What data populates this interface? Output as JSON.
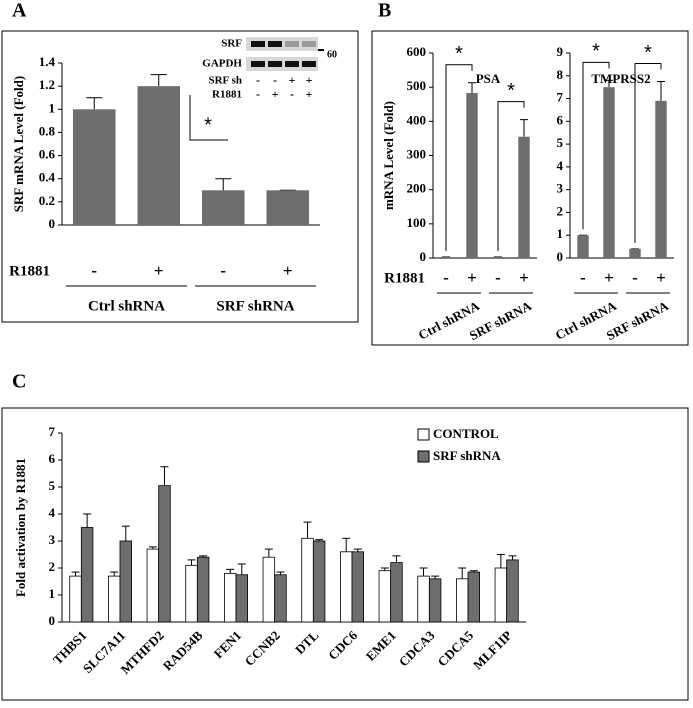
{
  "chart_data": [
    {
      "type": "bar",
      "panel_label": "A",
      "y_label": "SRF mRNA Level (Fold)",
      "categories": [
        "-",
        "+",
        "-",
        "+"
      ],
      "groups": [
        "Ctrl shRNA",
        "SRF shRNA"
      ],
      "treatment_label": "R1881",
      "values": [
        1.0,
        1.2,
        0.3,
        0.3
      ],
      "errors": [
        0.1,
        0.1,
        0.1,
        0
      ],
      "color": "#6e6e6e",
      "ylim": [
        0,
        1.4
      ],
      "yticks": [
        0,
        0.2,
        0.4,
        0.6,
        0.8,
        1,
        1.2,
        1.4
      ],
      "annotations": [
        "*"
      ],
      "inset": {
        "rows": [
          "SRF",
          "GAPDH"
        ],
        "marker": "60",
        "conditions": [
          {
            "label": "SRF sh",
            "signs": [
              "-",
              "-",
              "+",
              "+"
            ]
          },
          {
            "label": "R1881",
            "signs": [
              "-",
              "+",
              "-",
              "+"
            ]
          }
        ]
      }
    },
    {
      "type": "bar",
      "panel_label": "B",
      "title": "PSA",
      "y_label": "mRNA Level (Fold)",
      "categories": [
        "-",
        "+",
        "-",
        "+"
      ],
      "groups": [
        "Ctrl shRNA",
        "SRF shRNA"
      ],
      "treatment_label": "R1881",
      "values": [
        3,
        483,
        3,
        355
      ],
      "errors": [
        0,
        30,
        0,
        50
      ],
      "color": "#6e6e6e",
      "ylim": [
        0,
        600
      ],
      "yticks": [
        0,
        100,
        200,
        300,
        400,
        500,
        600
      ],
      "annotations": [
        "*",
        "*"
      ]
    },
    {
      "type": "bar",
      "title": "TMPRSS2",
      "categories": [
        "-",
        "+",
        "-",
        "+"
      ],
      "groups": [
        "Ctrl shRNA",
        "SRF shRNA"
      ],
      "values": [
        1,
        7.5,
        0.4,
        6.9
      ],
      "errors": [
        0,
        0.3,
        0,
        0.85
      ],
      "color": "#6e6e6e",
      "ylim": [
        0,
        9
      ],
      "yticks": [
        0,
        1,
        2,
        3,
        4,
        5,
        6,
        7,
        8,
        9
      ],
      "annotations": [
        "*",
        "*"
      ]
    },
    {
      "type": "bar",
      "panel_label": "C",
      "y_label": "Fold  activation by R1881",
      "categories": [
        "THBS1",
        "SLC7A11",
        "MTHFD2",
        "RAD54B",
        "FEN1",
        "CCNB2",
        "DTL",
        "CDC6",
        "EME1",
        "CDCA3",
        "CDCA5",
        "MLF1IP"
      ],
      "series": [
        {
          "name": "CONTROL",
          "color": "#ffffff",
          "values": [
            1.7,
            1.7,
            2.7,
            2.1,
            1.8,
            2.4,
            3.1,
            2.6,
            1.9,
            1.7,
            1.6,
            2.0
          ],
          "errors": [
            0.15,
            0.15,
            0.08,
            0.2,
            0.15,
            0.3,
            0.6,
            0.5,
            0.1,
            0.3,
            0.4,
            0.5
          ]
        },
        {
          "name": "SRF shRNA",
          "color": "#6e6e6e",
          "values": [
            3.5,
            3.0,
            5.05,
            2.4,
            1.75,
            1.75,
            3.0,
            2.6,
            2.2,
            1.6,
            1.85,
            2.3
          ],
          "errors": [
            0.5,
            0.55,
            0.7,
            0.05,
            0.4,
            0.1,
            0.05,
            0.1,
            0.25,
            0.1,
            0.05,
            0.15
          ]
        }
      ],
      "ylim": [
        0,
        7
      ],
      "yticks": [
        0,
        1,
        2,
        3,
        4,
        5,
        6,
        7
      ],
      "legend": "top-right"
    }
  ]
}
